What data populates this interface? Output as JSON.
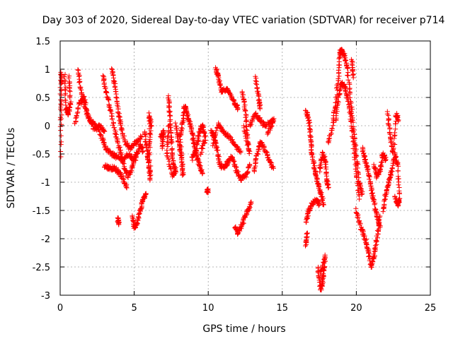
{
  "chart_data": {
    "type": "scatter",
    "title": "Day 303 of 2020, Sidereal Day-to-day VTEC variation (SDTVAR) for receiver p714",
    "xlabel": "GPS time / hours",
    "ylabel": "SDTVAR / TECUs",
    "xlim": [
      0,
      25
    ],
    "ylim": [
      -3,
      1.5
    ],
    "xticks": [
      0,
      5,
      10,
      15,
      20,
      25
    ],
    "xtick_labels": [
      "0",
      "5",
      "10",
      "15",
      "20",
      "25"
    ],
    "yticks": [
      -3,
      -2.5,
      -2,
      -1.5,
      -1,
      -0.5,
      0,
      0.5,
      1,
      1.5
    ],
    "ytick_labels": [
      "-3",
      "-2.5",
      "-2",
      "-1.5",
      "-1",
      "-0.5",
      "0",
      "0.5",
      "1",
      "1.5"
    ],
    "grid": true,
    "marker": "plus",
    "color": "#ff0000",
    "series": [
      {
        "name": "SDTVAR",
        "tracks": [
          [
            [
              0.0,
              0.0
            ],
            [
              0.05,
              0.95
            ],
            [
              0.1,
              0.75
            ],
            [
              0.05,
              -0.55
            ]
          ],
          [
            [
              0.3,
              0.9
            ],
            [
              0.4,
              0.3
            ],
            [
              0.55,
              0.2
            ],
            [
              0.7,
              0.4
            ],
            [
              0.6,
              0.88
            ]
          ],
          [
            [
              1.2,
              1.0
            ],
            [
              1.4,
              0.6
            ],
            [
              1.7,
              0.3
            ],
            [
              2.0,
              0.1
            ],
            [
              2.4,
              0.0
            ],
            [
              2.8,
              -0.2
            ],
            [
              3.1,
              -0.4
            ],
            [
              3.5,
              -0.5
            ],
            [
              3.8,
              -0.55
            ],
            [
              4.2,
              -0.6
            ],
            [
              4.6,
              -0.5
            ],
            [
              5.0,
              -0.6
            ],
            [
              5.4,
              -0.35
            ],
            [
              5.6,
              -0.45
            ]
          ],
          [
            [
              1.0,
              0.05
            ],
            [
              1.3,
              0.4
            ],
            [
              1.6,
              0.5
            ],
            [
              1.9,
              0.15
            ],
            [
              2.3,
              -0.05
            ],
            [
              2.7,
              0.0
            ],
            [
              3.0,
              -0.1
            ]
          ],
          [
            [
              2.9,
              0.9
            ],
            [
              3.1,
              0.6
            ],
            [
              3.4,
              0.3
            ],
            [
              3.7,
              -0.1
            ],
            [
              4.0,
              -0.4
            ],
            [
              4.3,
              -0.7
            ],
            [
              4.6,
              -0.9
            ],
            [
              4.9,
              -0.7
            ],
            [
              5.2,
              -0.5
            ]
          ],
          [
            [
              3.5,
              1.0
            ],
            [
              3.7,
              0.7
            ],
            [
              3.9,
              0.3
            ],
            [
              4.1,
              0.0
            ],
            [
              4.4,
              -0.3
            ],
            [
              4.7,
              -0.4
            ],
            [
              5.1,
              -0.3
            ],
            [
              5.5,
              -0.2
            ]
          ],
          [
            [
              3.0,
              -0.7
            ],
            [
              3.3,
              -0.75
            ],
            [
              3.6,
              -0.75
            ],
            [
              3.9,
              -0.8
            ],
            [
              4.2,
              -0.9
            ],
            [
              4.5,
              -1.1
            ]
          ],
          [
            [
              3.9,
              -1.65
            ],
            [
              3.95,
              -1.75
            ]
          ],
          [
            [
              4.9,
              -1.6
            ],
            [
              5.0,
              -1.8
            ],
            [
              5.2,
              -1.7
            ],
            [
              5.4,
              -1.5
            ],
            [
              5.6,
              -1.3
            ],
            [
              5.8,
              -1.2
            ]
          ],
          [
            [
              5.7,
              -0.1
            ],
            [
              5.85,
              -0.4
            ],
            [
              6.0,
              -0.7
            ],
            [
              6.1,
              -0.95
            ],
            [
              6.0,
              0.2
            ],
            [
              6.15,
              0.0
            ],
            [
              5.9,
              -0.6
            ]
          ],
          [
            [
              6.8,
              -0.2
            ],
            [
              7.0,
              -0.1
            ],
            [
              6.9,
              -0.4
            ]
          ],
          [
            [
              7.3,
              0.5
            ],
            [
              7.4,
              0.2
            ],
            [
              7.5,
              -0.2
            ],
            [
              7.6,
              -0.6
            ],
            [
              7.8,
              -0.8
            ],
            [
              7.6,
              -0.9
            ],
            [
              7.2,
              -0.5
            ],
            [
              7.35,
              0.0
            ]
          ],
          [
            [
              7.8,
              0.05
            ],
            [
              8.0,
              -0.3
            ],
            [
              8.2,
              -0.55
            ],
            [
              8.3,
              -0.9
            ],
            [
              8.1,
              -0.2
            ],
            [
              8.3,
              0.1
            ],
            [
              8.4,
              0.35
            ],
            [
              8.6,
              0.2
            ],
            [
              8.8,
              0.0
            ],
            [
              9.0,
              -0.25
            ],
            [
              9.2,
              -0.5
            ],
            [
              9.4,
              -0.7
            ],
            [
              9.6,
              -0.85
            ]
          ],
          [
            [
              8.9,
              -0.6
            ],
            [
              9.2,
              -0.4
            ],
            [
              9.4,
              -0.1
            ],
            [
              9.6,
              0.0
            ],
            [
              9.8,
              -0.2
            ],
            [
              9.5,
              -0.5
            ]
          ],
          [
            [
              10.5,
              1.0
            ],
            [
              10.7,
              0.85
            ],
            [
              10.9,
              0.6
            ],
            [
              11.2,
              0.65
            ],
            [
              11.5,
              0.55
            ],
            [
              11.8,
              0.4
            ],
            [
              12.0,
              0.3
            ]
          ],
          [
            [
              10.2,
              -0.1
            ],
            [
              10.4,
              -0.2
            ],
            [
              10.6,
              -0.45
            ],
            [
              10.8,
              -0.7
            ],
            [
              11.0,
              -0.75
            ],
            [
              11.3,
              -0.65
            ],
            [
              11.6,
              -0.55
            ],
            [
              11.9,
              -0.8
            ],
            [
              12.2,
              -0.95
            ],
            [
              12.5,
              -0.9
            ],
            [
              12.8,
              -0.7
            ]
          ],
          [
            [
              10.3,
              -0.35
            ],
            [
              10.7,
              0.05
            ],
            [
              11.0,
              -0.1
            ],
            [
              11.4,
              -0.2
            ],
            [
              11.8,
              -0.35
            ],
            [
              12.2,
              -0.45
            ]
          ],
          [
            [
              9.9,
              -1.15
            ],
            [
              10.0,
              -1.15
            ]
          ],
          [
            [
              11.8,
              -1.8
            ],
            [
              12.0,
              -1.9
            ],
            [
              12.3,
              -1.75
            ],
            [
              12.6,
              -1.55
            ],
            [
              12.9,
              -1.35
            ]
          ],
          [
            [
              12.3,
              0.6
            ],
            [
              12.5,
              0.3
            ],
            [
              12.6,
              -0.1
            ],
            [
              12.8,
              -0.5
            ],
            [
              12.4,
              0.0
            ]
          ],
          [
            [
              12.8,
              0.0
            ],
            [
              13.2,
              0.2
            ],
            [
              13.5,
              0.1
            ],
            [
              13.8,
              0.0
            ],
            [
              14.2,
              0.05
            ],
            [
              14.4,
              0.1
            ],
            [
              14.0,
              -0.15
            ]
          ],
          [
            [
              13.2,
              0.85
            ],
            [
              13.4,
              0.5
            ],
            [
              13.5,
              0.3
            ]
          ],
          [
            [
              13.1,
              -0.8
            ],
            [
              13.3,
              -0.5
            ],
            [
              13.5,
              -0.3
            ],
            [
              13.8,
              -0.4
            ],
            [
              14.1,
              -0.6
            ],
            [
              14.4,
              -0.75
            ]
          ],
          [
            [
              16.6,
              0.25
            ],
            [
              16.8,
              0.1
            ],
            [
              16.9,
              -0.2
            ],
            [
              17.0,
              -0.5
            ],
            [
              17.2,
              -0.8
            ],
            [
              17.4,
              -1.0
            ],
            [
              17.6,
              -1.2
            ],
            [
              17.8,
              -1.4
            ]
          ],
          [
            [
              16.6,
              -1.7
            ],
            [
              16.8,
              -1.5
            ],
            [
              17.0,
              -1.4
            ],
            [
              17.3,
              -1.3
            ],
            [
              17.5,
              -1.4
            ]
          ],
          [
            [
              16.6,
              -2.1
            ],
            [
              16.7,
              -1.9
            ]
          ],
          [
            [
              17.5,
              -0.8
            ],
            [
              17.7,
              -0.5
            ],
            [
              17.9,
              -0.6
            ],
            [
              18.0,
              -0.95
            ],
            [
              18.1,
              -1.1
            ]
          ],
          [
            [
              17.4,
              -2.5
            ],
            [
              17.6,
              -2.9
            ],
            [
              17.7,
              -2.8
            ],
            [
              17.8,
              -2.55
            ],
            [
              17.9,
              -2.3
            ],
            [
              17.5,
              -2.7
            ]
          ],
          [
            [
              18.1,
              -0.3
            ],
            [
              18.4,
              0.0
            ],
            [
              18.6,
              0.4
            ],
            [
              18.8,
              0.9
            ],
            [
              18.9,
              1.3
            ],
            [
              19.0,
              1.35
            ],
            [
              19.2,
              1.25
            ],
            [
              19.4,
              1.0
            ],
            [
              19.6,
              0.5
            ],
            [
              19.8,
              0.0
            ],
            [
              20.0,
              -0.5
            ],
            [
              20.2,
              -1.0
            ],
            [
              20.4,
              -1.2
            ]
          ],
          [
            [
              18.6,
              0.1
            ],
            [
              18.8,
              0.5
            ],
            [
              19.0,
              0.75
            ],
            [
              19.2,
              0.7
            ],
            [
              19.4,
              0.5
            ],
            [
              19.6,
              0.2
            ],
            [
              19.8,
              -0.3
            ],
            [
              20.0,
              -0.8
            ],
            [
              20.2,
              -1.3
            ]
          ],
          [
            [
              19.7,
              1.15
            ],
            [
              19.8,
              0.85
            ]
          ],
          [
            [
              20.0,
              -1.5
            ],
            [
              20.3,
              -1.8
            ],
            [
              20.6,
              -2.0
            ],
            [
              20.8,
              -2.2
            ],
            [
              21.0,
              -2.5
            ],
            [
              21.2,
              -2.3
            ],
            [
              21.4,
              -2.0
            ],
            [
              21.6,
              -1.6
            ]
          ],
          [
            [
              20.4,
              -0.4
            ],
            [
              20.6,
              -0.6
            ],
            [
              20.8,
              -0.8
            ],
            [
              21.0,
              -1.1
            ],
            [
              21.2,
              -1.35
            ],
            [
              21.4,
              -1.6
            ],
            [
              21.6,
              -1.8
            ]
          ],
          [
            [
              21.2,
              -0.7
            ],
            [
              21.4,
              -0.9
            ],
            [
              21.6,
              -0.8
            ],
            [
              21.8,
              -0.5
            ],
            [
              22.0,
              -0.6
            ]
          ],
          [
            [
              21.8,
              -1.5
            ],
            [
              22.0,
              -1.2
            ],
            [
              22.2,
              -1.0
            ],
            [
              22.4,
              -0.8
            ],
            [
              22.6,
              -0.5
            ],
            [
              22.8,
              -0.7
            ],
            [
              22.9,
              -1.3
            ],
            [
              22.8,
              -1.4
            ],
            [
              22.6,
              -1.25
            ]
          ],
          [
            [
              22.1,
              0.25
            ],
            [
              22.3,
              -0.2
            ],
            [
              22.5,
              -0.5
            ],
            [
              22.7,
              0.2
            ],
            [
              22.85,
              0.1
            ]
          ]
        ]
      }
    ]
  }
}
